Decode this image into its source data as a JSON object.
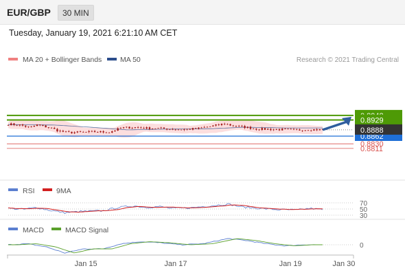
{
  "header": {
    "pair": "EUR/GBP",
    "timeframe": "30 MIN",
    "datetime": "Tuesday, January 19, 2021 6:21:10 AM CET"
  },
  "colors": {
    "green": "#4e9a06",
    "red": "#d9534f",
    "blue": "#1f6fd6",
    "ma50": "#2c4d8c",
    "bollinger_fill": "#fbd3d3",
    "candle": "#a11a1a",
    "price_tag": "#333333",
    "rsi": "#5b7fd0",
    "rsi_ma": "#d21f1f",
    "macd": "#5b7fd0",
    "macd_signal": "#5aa02c",
    "arrow": "#2f5e9e"
  },
  "chart_data": [
    {
      "type": "candlestick",
      "legend": [
        "MA 20 + Bollinger Bands",
        "MA 50"
      ],
      "credit": "Research © 2021 Trading Central",
      "current_price": 0.8888,
      "levels": [
        {
          "value": 0.8948,
          "label": "0.8948",
          "kind": "resistance"
        },
        {
          "value": 0.8929,
          "label": "0.8929",
          "kind": "resistance"
        },
        {
          "value": 0.8862,
          "label": "0.8862",
          "kind": "pivot"
        },
        {
          "value": 0.883,
          "label": "0.8830",
          "kind": "support"
        },
        {
          "value": 0.8811,
          "label": "0.8811",
          "kind": "support"
        }
      ],
      "forecast_arrow": {
        "from": 0.8888,
        "to": 0.8948
      },
      "close_anchors": [
        [
          0,
          0.8912
        ],
        [
          0.04,
          0.8908
        ],
        [
          0.07,
          0.8897
        ],
        [
          0.09,
          0.8909
        ],
        [
          0.13,
          0.8898
        ],
        [
          0.16,
          0.8884
        ],
        [
          0.19,
          0.8877
        ],
        [
          0.24,
          0.8878
        ],
        [
          0.28,
          0.888
        ],
        [
          0.32,
          0.8878
        ],
        [
          0.36,
          0.8896
        ],
        [
          0.4,
          0.8899
        ],
        [
          0.44,
          0.8895
        ],
        [
          0.47,
          0.8895
        ],
        [
          0.51,
          0.8892
        ],
        [
          0.55,
          0.8889
        ],
        [
          0.6,
          0.8893
        ],
        [
          0.65,
          0.8904
        ],
        [
          0.69,
          0.8914
        ],
        [
          0.71,
          0.8906
        ],
        [
          0.75,
          0.89
        ],
        [
          0.79,
          0.8892
        ],
        [
          0.84,
          0.889
        ],
        [
          0.88,
          0.8889
        ],
        [
          0.92,
          0.8887
        ],
        [
          0.96,
          0.889
        ],
        [
          1.0,
          0.8888
        ]
      ],
      "ma50_anchors": [
        [
          0,
          0.891
        ],
        [
          0.15,
          0.8908
        ],
        [
          0.25,
          0.89
        ],
        [
          0.38,
          0.8888
        ],
        [
          0.5,
          0.8891
        ],
        [
          0.65,
          0.8893
        ],
        [
          0.75,
          0.8899
        ],
        [
          0.88,
          0.8896
        ],
        [
          1.0,
          0.8896
        ]
      ]
    },
    {
      "type": "line",
      "name": "RSI",
      "legend": [
        "RSI",
        "9MA"
      ],
      "levels": [
        70,
        50,
        30
      ],
      "level_labels": [
        "70",
        "50",
        "30"
      ],
      "ylim": [
        20,
        80
      ],
      "rsi_anchors": [
        [
          0,
          52
        ],
        [
          0.05,
          49
        ],
        [
          0.09,
          55
        ],
        [
          0.13,
          46
        ],
        [
          0.18,
          38
        ],
        [
          0.23,
          42
        ],
        [
          0.3,
          44
        ],
        [
          0.35,
          55
        ],
        [
          0.4,
          60
        ],
        [
          0.44,
          55
        ],
        [
          0.48,
          58
        ],
        [
          0.52,
          52
        ],
        [
          0.58,
          54
        ],
        [
          0.64,
          60
        ],
        [
          0.7,
          66
        ],
        [
          0.74,
          57
        ],
        [
          0.8,
          52
        ],
        [
          0.86,
          48
        ],
        [
          0.92,
          47
        ],
        [
          0.96,
          52
        ],
        [
          1.0,
          48
        ]
      ]
    },
    {
      "type": "line",
      "name": "MACD",
      "legend": [
        "MACD",
        "MACD Signal"
      ],
      "levels": [
        0
      ],
      "level_labels": [
        "0"
      ],
      "ylim": [
        -0.0012,
        0.0008
      ],
      "macd_anchors": [
        [
          0,
          0.0
        ],
        [
          0.06,
          0.0001
        ],
        [
          0.12,
          -0.0002
        ],
        [
          0.18,
          -0.0008
        ],
        [
          0.24,
          -0.0004
        ],
        [
          0.3,
          -0.0004
        ],
        [
          0.36,
          0.0001
        ],
        [
          0.42,
          0.0003
        ],
        [
          0.48,
          0.0002
        ],
        [
          0.55,
          0.0
        ],
        [
          0.62,
          0.0001
        ],
        [
          0.7,
          0.0006
        ],
        [
          0.76,
          0.0004
        ],
        [
          0.82,
          0.0001
        ],
        [
          0.88,
          -0.0001
        ],
        [
          0.94,
          0.0
        ],
        [
          1.0,
          0.0
        ]
      ]
    }
  ],
  "x_axis": {
    "ticks": [
      {
        "label": "Jan 15",
        "pos": 0.228
      },
      {
        "label": "Jan 17",
        "pos": 0.487
      },
      {
        "label": "Jan 19",
        "pos": 0.818
      },
      {
        "label": "Jan 30",
        "pos": 0.972
      }
    ]
  }
}
